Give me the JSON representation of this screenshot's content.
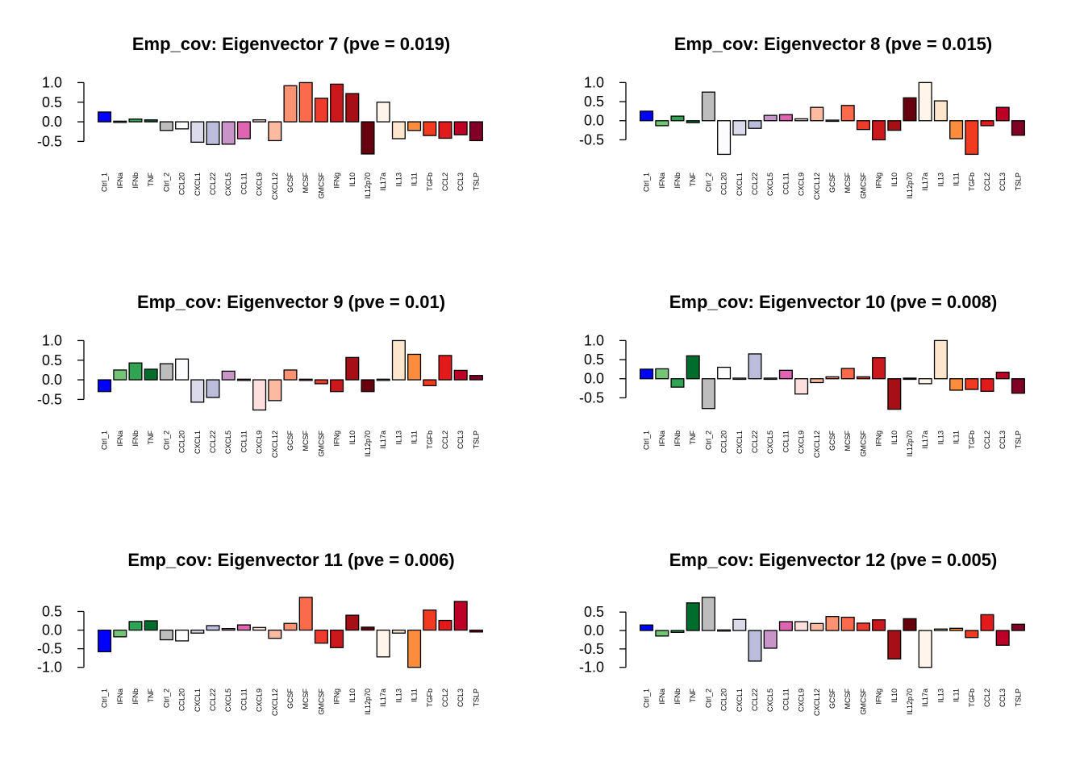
{
  "figure": {
    "background": "#ffffff"
  },
  "categories": [
    "Ctrl_1",
    "IFNa",
    "IFNb",
    "TNF",
    "Ctrl_2",
    "CCL20",
    "CXCL1",
    "CCL22",
    "CXCL5",
    "CCL11",
    "CXCL9",
    "CXCL12",
    "GCSF",
    "MCSF",
    "GMCSF",
    "IFNg",
    "IL10",
    "IL12p70",
    "IL17a",
    "IL13",
    "IL11",
    "TGFb",
    "CCL2",
    "CCL3",
    "TSLP"
  ],
  "bar_colors": [
    "#0000ff",
    "#74c476",
    "#31a354",
    "#006d2c",
    "#bdbdbd",
    "#fcfbfd",
    "#dadaeb",
    "#bcbddc",
    "#c994c7",
    "#df65b0",
    "#fde0dd",
    "#fcbba1",
    "#fc9272",
    "#fb6a4a",
    "#ef3b2c",
    "#cb181d",
    "#a50f15",
    "#67000d",
    "#fff5eb",
    "#fee6ce",
    "#fd8d3c",
    "#f03b20",
    "#e31a1c",
    "#bd0026",
    "#800026"
  ],
  "chart_data": [
    {
      "type": "bar",
      "title": "Emp_cov: Eigenvector 7 (pve = 0.019)",
      "ylim": [
        -0.8,
        1.05
      ],
      "yticks": [
        -0.5,
        0.0,
        0.5,
        1.0
      ],
      "ytick_labels": [
        "-0.5",
        "0.0",
        "0.5",
        "1.0"
      ],
      "values": [
        0.25,
        -0.03,
        0.07,
        0.05,
        -0.22,
        -0.18,
        -0.52,
        -0.58,
        -0.57,
        -0.43,
        0.05,
        -0.48,
        0.92,
        1.0,
        0.6,
        0.96,
        0.72,
        -0.82,
        0.5,
        -0.43,
        -0.22,
        -0.35,
        -0.42,
        -0.33,
        -0.48
      ]
    },
    {
      "type": "bar",
      "title": "Emp_cov: Eigenvector 8 (pve = 0.015)",
      "ylim": [
        -0.85,
        1.05
      ],
      "yticks": [
        -0.5,
        0.0,
        0.5,
        1.0
      ],
      "ytick_labels": [
        "-0.5",
        "0.0",
        "0.5",
        "1.0"
      ],
      "values": [
        0.25,
        -0.13,
        0.12,
        -0.05,
        0.75,
        -0.88,
        -0.37,
        -0.2,
        0.14,
        0.16,
        0.05,
        0.35,
        0.02,
        0.4,
        -0.23,
        -0.5,
        -0.25,
        0.6,
        1.0,
        0.52,
        -0.47,
        -0.88,
        -0.13,
        0.35,
        -0.38
      ]
    },
    {
      "type": "bar",
      "title": "Emp_cov: Eigenvector 9 (pve = 0.01)",
      "ylim": [
        -0.8,
        1.05
      ],
      "yticks": [
        -0.5,
        0.0,
        0.5,
        1.0
      ],
      "ytick_labels": [
        "-0.5",
        "0.0",
        "0.5",
        "1.0"
      ],
      "values": [
        -0.3,
        0.25,
        0.43,
        0.27,
        0.41,
        0.53,
        -0.57,
        -0.45,
        0.22,
        0.02,
        -0.77,
        -0.53,
        0.25,
        -0.03,
        -0.1,
        -0.3,
        0.57,
        -0.3,
        -0.01,
        1.0,
        0.65,
        -0.15,
        0.62,
        0.24,
        0.11
      ]
    },
    {
      "type": "bar",
      "title": "Emp_cov: Eigenvector 10 (pve = 0.008)",
      "ylim": [
        -0.85,
        1.05
      ],
      "yticks": [
        -0.5,
        0.0,
        0.5,
        1.0
      ],
      "ytick_labels": [
        "-0.5",
        "0.0",
        "0.5",
        "1.0"
      ],
      "values": [
        0.25,
        0.26,
        -0.22,
        0.6,
        -0.78,
        0.3,
        0.0,
        0.65,
        -0.03,
        0.22,
        -0.4,
        -0.1,
        0.05,
        0.27,
        0.05,
        0.55,
        -0.8,
        -0.01,
        -0.13,
        1.0,
        -0.3,
        -0.28,
        -0.33,
        0.17,
        -0.38
      ]
    },
    {
      "type": "bar",
      "title": "Emp_cov: Eigenvector 11 (pve = 0.006)",
      "ylim": [
        -1.05,
        0.9
      ],
      "yticks": [
        -1.0,
        -0.5,
        0.0,
        0.5
      ],
      "ytick_labels": [
        "-1.0",
        "-0.5",
        "0.0",
        "0.5"
      ],
      "values": [
        -0.58,
        -0.18,
        0.23,
        0.25,
        -0.26,
        -0.29,
        -0.08,
        0.12,
        0.04,
        0.14,
        0.07,
        -0.22,
        0.18,
        0.88,
        -0.35,
        -0.47,
        0.4,
        0.08,
        -0.72,
        -0.08,
        -1.0,
        0.54,
        0.26,
        0.77,
        -0.05
      ]
    },
    {
      "type": "bar",
      "title": "Emp_cov: Eigenvector 12 (pve = 0.005)",
      "ylim": [
        -1.05,
        0.92
      ],
      "yticks": [
        -1.0,
        -0.5,
        0.0,
        0.5
      ],
      "ytick_labels": [
        "-1.0",
        "-0.5",
        "0.0",
        "0.5"
      ],
      "values": [
        0.15,
        -0.15,
        -0.05,
        0.75,
        0.9,
        0.03,
        0.3,
        -0.83,
        -0.48,
        0.24,
        0.24,
        0.19,
        0.38,
        0.36,
        0.2,
        0.29,
        -0.77,
        0.32,
        -1.0,
        0.04,
        0.06,
        -0.19,
        0.43,
        -0.4,
        0.17
      ]
    }
  ]
}
